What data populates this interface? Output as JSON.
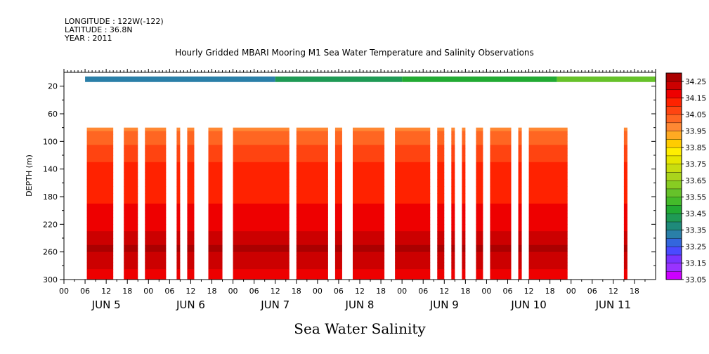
{
  "header": {
    "longitude": "LONGITUDE : 122W(-122)",
    "latitude": "LATITUDE : 36.8N",
    "year": "YEAR : 2011"
  },
  "chart_data": {
    "type": "heatmap",
    "title": "Hourly Gridded MBARI Mooring M1 Sea Water Temperature and Salinity Observations",
    "xlabel": "Sea Water Salinity",
    "ylabel": "DEPTH (m)",
    "x_tick_labels": [
      "00",
      "06",
      "12",
      "18",
      "00",
      "06",
      "12",
      "18",
      "00",
      "06",
      "12",
      "18",
      "00",
      "06",
      "12",
      "18",
      "00",
      "06",
      "12",
      "18",
      "00",
      "06",
      "12",
      "18",
      "00",
      "06",
      "12",
      "18"
    ],
    "day_labels": [
      "JUN 5",
      "JUN 6",
      "JUN 7",
      "JUN 8",
      "JUN 9",
      "JUN 10",
      "JUN 11"
    ],
    "y_ticks": [
      20,
      60,
      100,
      140,
      180,
      220,
      260,
      300
    ],
    "ylim": [
      300,
      0
    ],
    "colorbar": {
      "labels": [
        "34.25",
        "34.15",
        "34.05",
        "33.95",
        "33.85",
        "33.75",
        "33.65",
        "33.55",
        "33.45",
        "33.35",
        "33.25",
        "33.15",
        "33.05"
      ],
      "levels": [
        33.05,
        33.1,
        33.15,
        33.2,
        33.25,
        33.3,
        33.35,
        33.4,
        33.45,
        33.5,
        33.55,
        33.6,
        33.65,
        33.7,
        33.75,
        33.8,
        33.85,
        33.9,
        33.95,
        34.0,
        34.05,
        34.1,
        34.15,
        34.2,
        34.25,
        34.3
      ],
      "colors": [
        "#cc00ff",
        "#9933ff",
        "#7a33ff",
        "#4a4aff",
        "#3366dd",
        "#2a7fa8",
        "#1f8a7a",
        "#1f9a55",
        "#22aa33",
        "#44bb2a",
        "#66c22a",
        "#88cc22",
        "#aad41c",
        "#c8dd10",
        "#e6e600",
        "#ffee00",
        "#ffcc00",
        "#ffaa22",
        "#ff8833",
        "#ff6622",
        "#ff4411",
        "#ff2200",
        "#ee0000",
        "#cc0000",
        "#aa0000"
      ]
    },
    "surface_band": {
      "depth": 10,
      "start_hour": 6,
      "segments": [
        {
          "to_hour": 60,
          "value": 33.32
        },
        {
          "to_hour": 96,
          "value": 33.4
        },
        {
          "to_hour": 140,
          "value": 33.47
        },
        {
          "to_hour": 168,
          "value": 33.55
        }
      ]
    },
    "data_windows": [
      [
        6.5,
        14
      ],
      [
        17,
        21
      ],
      [
        23,
        29
      ],
      [
        32,
        33
      ],
      [
        35,
        37
      ],
      [
        41,
        45
      ],
      [
        48,
        64
      ],
      [
        66,
        75
      ],
      [
        77,
        79
      ],
      [
        82,
        91
      ],
      [
        94,
        104
      ],
      [
        106,
        108
      ],
      [
        110,
        111
      ],
      [
        113,
        114
      ],
      [
        117,
        119
      ],
      [
        121,
        127
      ],
      [
        129,
        130
      ],
      [
        132,
        143
      ],
      [
        159,
        160
      ]
    ],
    "profile": [
      {
        "depth": 80,
        "value": 33.98
      },
      {
        "depth": 100,
        "value": 34.04
      },
      {
        "depth": 130,
        "value": 34.1
      },
      {
        "depth": 170,
        "value": 34.13
      },
      {
        "depth": 210,
        "value": 34.17
      },
      {
        "depth": 235,
        "value": 34.21
      },
      {
        "depth": 255,
        "value": 34.26
      },
      {
        "depth": 275,
        "value": 34.21
      },
      {
        "depth": 300,
        "value": 34.18
      }
    ]
  }
}
